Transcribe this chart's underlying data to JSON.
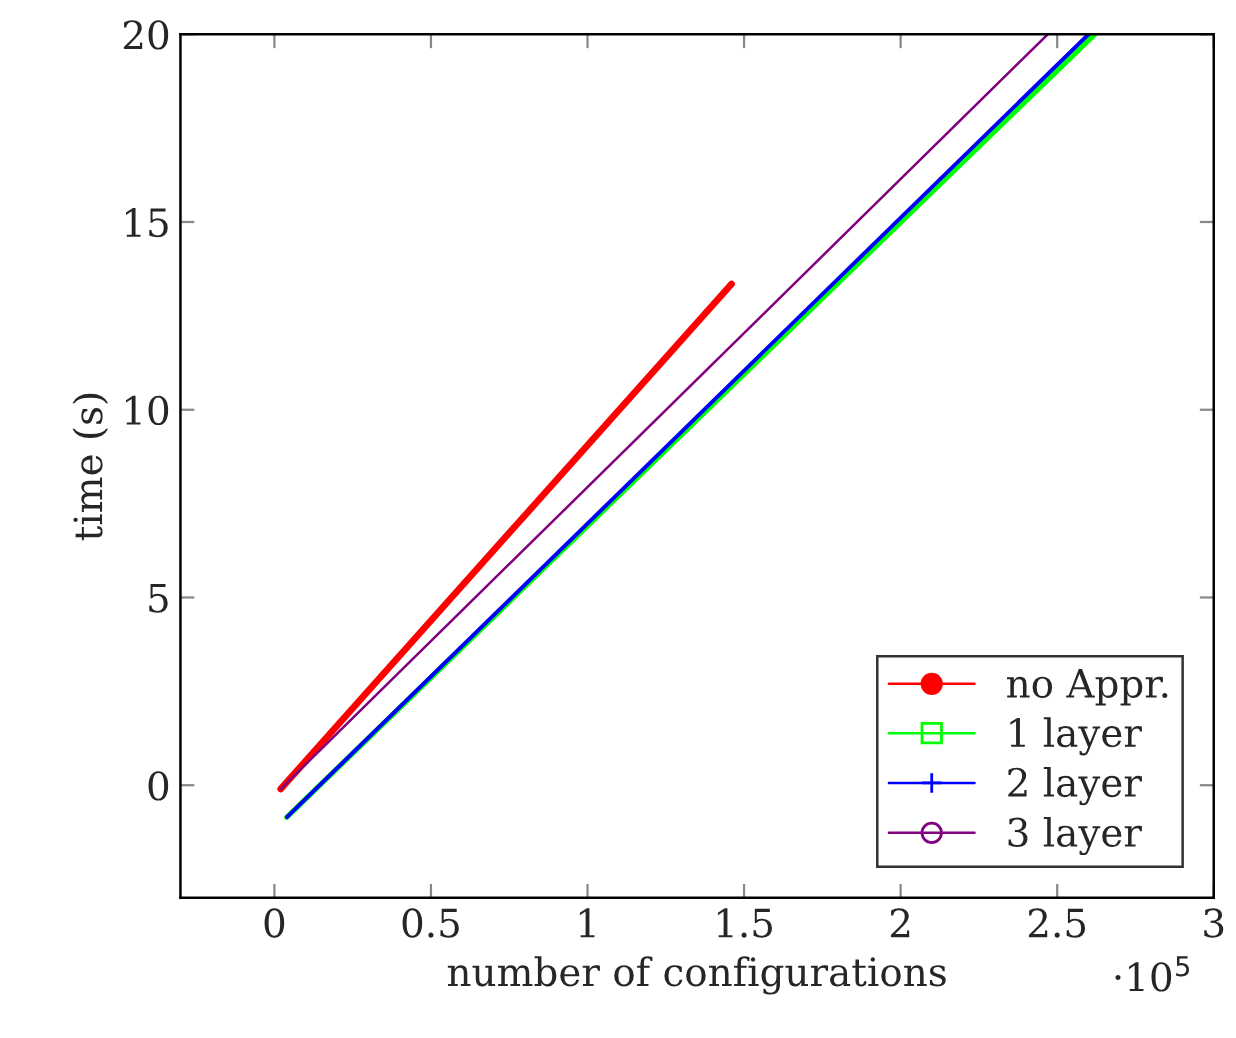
{
  "chart_data": {
    "type": "line",
    "xlabel": "number of configurations",
    "ylabel": "time (s)",
    "annotations": [
      "·10$^{5}$"
    ],
    "xlim": [
      -0.3,
      3
    ],
    "ylim": [
      -3,
      20
    ],
    "xticks": [
      0,
      0.5,
      1,
      1.5,
      2,
      2.5,
      3
    ],
    "yticks": [
      0,
      5,
      10,
      15,
      20
    ],
    "legend": "bottom right",
    "grid": false,
    "line_style": "solid",
    "series": [
      {
        "name": "no Appr.",
        "color": "#ff0000",
        "x": [
          0.02,
          1.46
        ],
        "values": [
          -0.1,
          13.35
        ]
      },
      {
        "name": "1 layer",
        "color": "#00ff00",
        "x": [
          0.04,
          2.62
        ],
        "values": [
          -0.85,
          20
        ]
      },
      {
        "name": "2 layer",
        "color": "#0000ff",
        "x": [
          0.04,
          2.6
        ],
        "values": [
          -0.85,
          20
        ]
      },
      {
        "name": "3 layer",
        "color": "#800080",
        "x": [
          0.02,
          2.47
        ],
        "values": [
          -0.1,
          20
        ]
      }
    ]
  }
}
